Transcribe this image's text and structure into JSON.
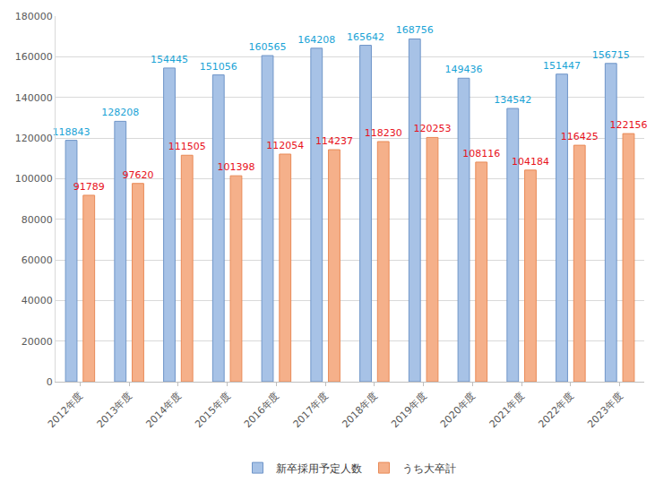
{
  "chart_data": {
    "type": "bar",
    "categories": [
      "2012年度",
      "2013年度",
      "2014年度",
      "2015年度",
      "2016年度",
      "2017年度",
      "2018年度",
      "2019年度",
      "2020年度",
      "2021年度",
      "2022年度",
      "2023年度"
    ],
    "series": [
      {
        "name": "新卒採用予定人数",
        "color": "#a7c2e6",
        "values": [
          118843,
          128208,
          154445,
          151056,
          160565,
          164208,
          165642,
          168756,
          149436,
          134542,
          151447,
          156715
        ]
      },
      {
        "name": "うち大卒計",
        "color": "#f5b08a",
        "values": [
          91789,
          97620,
          111505,
          101398,
          112054,
          114237,
          118230,
          120253,
          108116,
          104184,
          116425,
          122156
        ]
      }
    ],
    "ylim": [
      0,
      180000
    ],
    "yticks": [
      0,
      20000,
      40000,
      60000,
      80000,
      100000,
      120000,
      140000,
      160000,
      180000
    ],
    "grid": true,
    "legend": "bottom",
    "data_labels": true
  }
}
